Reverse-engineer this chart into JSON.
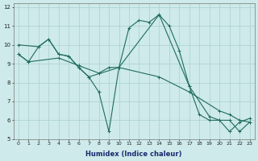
{
  "xlabel": "Humidex (Indice chaleur)",
  "bg_color": "#ceeaea",
  "line_color": "#1e6b60",
  "grid_color": "#aacfcf",
  "xlim": [
    -0.5,
    23.5
  ],
  "ylim": [
    5,
    12.2
  ],
  "yticks": [
    5,
    6,
    7,
    8,
    9,
    10,
    11,
    12
  ],
  "xticks": [
    0,
    1,
    2,
    3,
    4,
    5,
    6,
    7,
    8,
    9,
    10,
    11,
    12,
    13,
    14,
    15,
    16,
    17,
    18,
    19,
    20,
    21,
    22,
    23
  ],
  "line1_x": [
    0,
    1,
    2,
    3,
    4,
    5,
    6,
    7,
    8,
    9,
    10,
    11,
    12,
    13,
    14,
    15,
    16,
    17,
    18,
    19,
    20,
    21,
    22,
    23
  ],
  "line1_y": [
    9.5,
    9.1,
    9.9,
    10.3,
    9.5,
    9.4,
    8.8,
    8.3,
    7.5,
    5.4,
    8.8,
    10.9,
    11.3,
    11.2,
    11.6,
    11.0,
    9.7,
    7.8,
    6.3,
    6.0,
    6.0,
    5.4,
    5.9,
    6.1
  ],
  "line2_x": [
    0,
    2,
    3,
    4,
    5,
    6,
    7,
    10,
    14,
    17,
    19,
    20,
    21,
    22,
    23
  ],
  "line2_y": [
    10.0,
    9.9,
    10.3,
    9.5,
    9.4,
    8.8,
    8.3,
    8.8,
    11.6,
    7.8,
    6.2,
    6.0,
    6.0,
    5.4,
    5.9
  ],
  "line3_x": [
    0,
    1,
    4,
    6,
    8,
    9,
    10,
    14,
    17,
    20,
    21,
    22,
    23
  ],
  "line3_y": [
    9.5,
    9.1,
    9.3,
    8.9,
    8.5,
    8.8,
    8.8,
    8.3,
    7.5,
    6.5,
    6.3,
    6.0,
    5.9
  ]
}
